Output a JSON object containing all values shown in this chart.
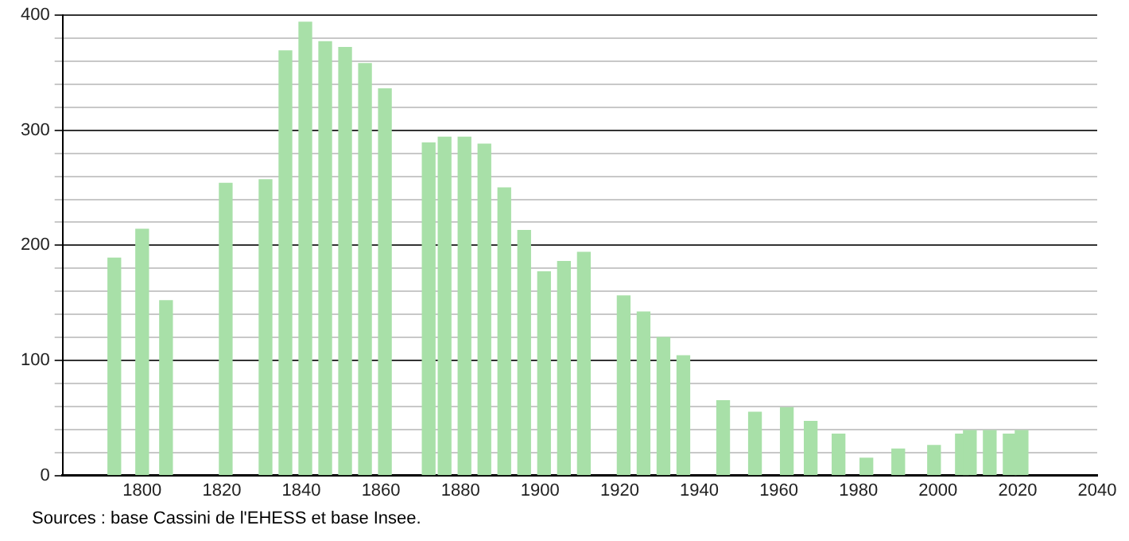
{
  "chart_data": {
    "type": "bar",
    "x": [
      1793,
      1800,
      1806,
      1821,
      1831,
      1836,
      1841,
      1846,
      1851,
      1856,
      1861,
      1872,
      1876,
      1881,
      1886,
      1891,
      1896,
      1901,
      1906,
      1911,
      1921,
      1926,
      1931,
      1936,
      1946,
      1954,
      1962,
      1968,
      1975,
      1982,
      1990,
      1999,
      2006,
      2008,
      2013,
      2018,
      2021
    ],
    "values": [
      189,
      214,
      152,
      254,
      257,
      369,
      394,
      377,
      372,
      358,
      336,
      289,
      294,
      294,
      288,
      250,
      213,
      177,
      186,
      194,
      156,
      142,
      120,
      104,
      65,
      55,
      59,
      47,
      36,
      15,
      23,
      26,
      36,
      39,
      39,
      36,
      39
    ],
    "color": "#a8e0a8",
    "xlim": [
      1780,
      2040
    ],
    "xticks": [
      1800,
      1820,
      1840,
      1860,
      1880,
      1900,
      1920,
      1940,
      1960,
      1980,
      2000,
      2020,
      2040
    ],
    "ylim": [
      0,
      400
    ],
    "yticks": [
      0,
      {
        "value": 20,
        "label": null
      },
      {
        "value": 40,
        "label": null
      },
      {
        "value": 60,
        "label": null
      },
      {
        "value": 80,
        "label": null
      },
      100,
      {
        "value": 120,
        "label": null
      },
      {
        "value": 140,
        "label": null
      },
      {
        "value": 160,
        "label": null
      },
      {
        "value": 180,
        "label": null
      },
      200,
      {
        "value": 220,
        "label": null
      },
      {
        "value": 240,
        "label": null
      },
      {
        "value": 260,
        "label": null
      },
      {
        "value": 280,
        "label": null
      },
      300,
      {
        "value": 320,
        "label": null
      },
      {
        "value": 340,
        "label": null
      },
      {
        "value": 360,
        "label": null
      },
      {
        "value": 380,
        "label": null
      },
      400
    ],
    "grid": "y",
    "legend": false,
    "annotations": [
      "Sources : base Cassini de l'EHESS et base Insee."
    ]
  }
}
